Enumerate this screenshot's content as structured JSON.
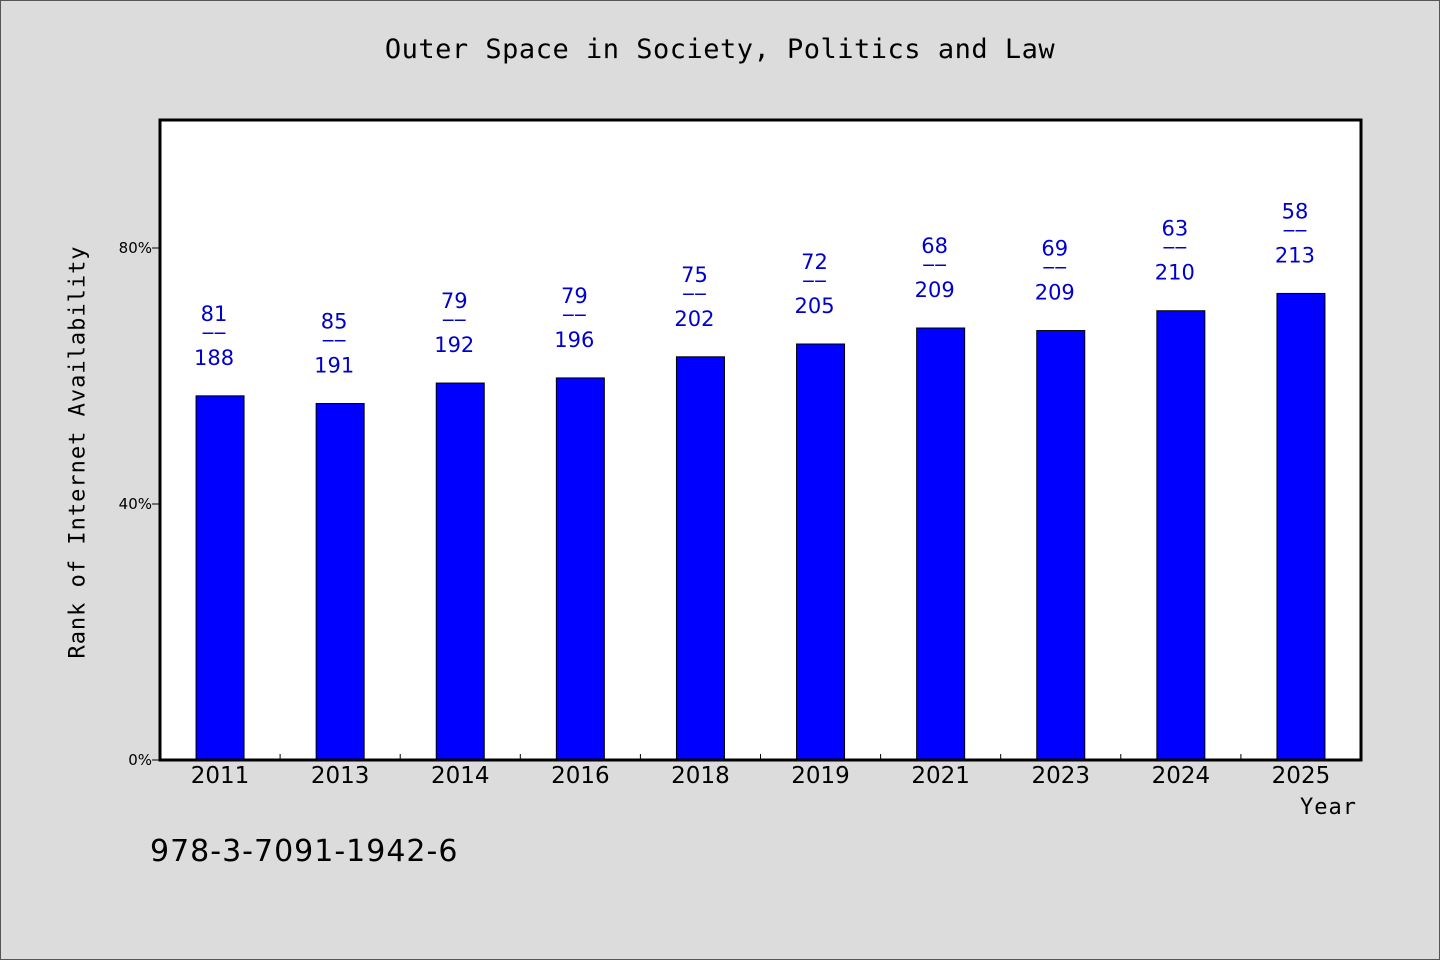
{
  "chart_data": {
    "type": "bar",
    "title": "Outer Space in Society, Politics and Law",
    "xlabel": "Year",
    "ylabel": "Rank of Internet Availability",
    "categories": [
      "2011",
      "2013",
      "2014",
      "2016",
      "2018",
      "2019",
      "2021",
      "2023",
      "2024",
      "2025"
    ],
    "values": [
      56.9,
      55.7,
      58.9,
      59.7,
      63.0,
      65.0,
      67.5,
      67.1,
      70.2,
      72.9
    ],
    "bar_labels": [
      {
        "rank": "81",
        "sep": "——",
        "total": "188"
      },
      {
        "rank": "85",
        "sep": "——",
        "total": "191"
      },
      {
        "rank": "79",
        "sep": "——",
        "total": "192"
      },
      {
        "rank": "79",
        "sep": "——",
        "total": "196"
      },
      {
        "rank": "75",
        "sep": "——",
        "total": "202"
      },
      {
        "rank": "72",
        "sep": "——",
        "total": "205"
      },
      {
        "rank": "68",
        "sep": "——",
        "total": "209"
      },
      {
        "rank": "69",
        "sep": "——",
        "total": "209"
      },
      {
        "rank": "63",
        "sep": "——",
        "total": "210"
      },
      {
        "rank": "58",
        "sep": "——",
        "total": "213"
      }
    ],
    "ylim": [
      0,
      100
    ],
    "yticks": [
      0,
      40,
      80
    ],
    "ytick_labels": [
      "0%",
      "40%",
      "80%"
    ],
    "grid": false,
    "bar_color": "#0000ff",
    "label_color": "#0000cc",
    "background": "#dcdcdc",
    "plot_background": "#ffffff"
  },
  "footer": {
    "isbn": "978-3-7091-1942-6"
  }
}
